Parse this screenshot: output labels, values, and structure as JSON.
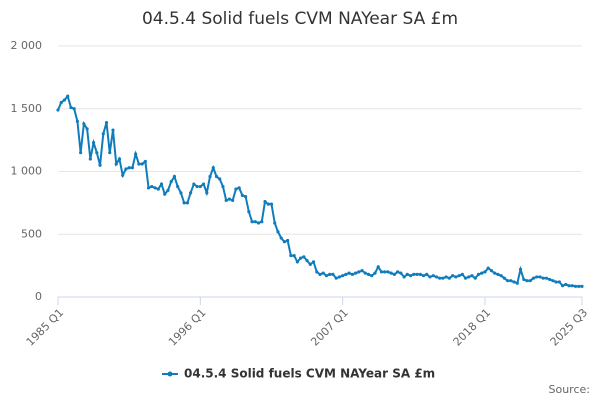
{
  "chart_data": {
    "type": "line",
    "title": "04.5.4 Solid fuels CVM NAYear SA £m",
    "source": "Source:",
    "categories": [
      "1985 Q1",
      null,
      null,
      null,
      null,
      null,
      null,
      null,
      null,
      null,
      null,
      null,
      null,
      null,
      null,
      null,
      null,
      null,
      null,
      null,
      null,
      null,
      null,
      null,
      null,
      null,
      null,
      null,
      null,
      null,
      null,
      null,
      null,
      null,
      null,
      null,
      null,
      null,
      null,
      null,
      null,
      null,
      null,
      null,
      "1996 Q1",
      null,
      null,
      null,
      null,
      null,
      null,
      null,
      null,
      null,
      null,
      null,
      null,
      null,
      null,
      null,
      null,
      null,
      null,
      null,
      null,
      null,
      null,
      null,
      null,
      null,
      null,
      null,
      null,
      null,
      null,
      null,
      null,
      null,
      null,
      null,
      null,
      null,
      null,
      null,
      null,
      null,
      null,
      null,
      "2007 Q1",
      null,
      null,
      null,
      null,
      null,
      null,
      null,
      null,
      null,
      null,
      null,
      null,
      null,
      null,
      null,
      null,
      null,
      null,
      null,
      null,
      null,
      null,
      null,
      null,
      null,
      null,
      null,
      null,
      null,
      null,
      null,
      null,
      null,
      null,
      null,
      null,
      null,
      null,
      null,
      null,
      null,
      null,
      null,
      "2018 Q1",
      null,
      null,
      null,
      null,
      null,
      null,
      null,
      null,
      null,
      null,
      null,
      null,
      null,
      null,
      null,
      null,
      null,
      null,
      null,
      null,
      null,
      null,
      null,
      null,
      null,
      null,
      null,
      null,
      null,
      "2025 Q3"
    ],
    "series": [
      {
        "name": "04.5.4 Solid fuels CVM NAYear SA £m",
        "color": "#0f7dbd",
        "values": [
          1490,
          1550,
          1570,
          1600,
          1510,
          1500,
          1400,
          1150,
          1380,
          1340,
          1100,
          1230,
          1150,
          1050,
          1300,
          1390,
          1150,
          1330,
          1060,
          1100,
          970,
          1020,
          1030,
          1030,
          1140,
          1060,
          1060,
          1080,
          870,
          880,
          870,
          860,
          900,
          820,
          850,
          920,
          960,
          880,
          830,
          750,
          750,
          830,
          900,
          880,
          880,
          900,
          830,
          960,
          1030,
          960,
          940,
          880,
          770,
          780,
          770,
          860,
          870,
          810,
          800,
          680,
          600,
          600,
          590,
          600,
          760,
          740,
          740,
          590,
          520,
          470,
          440,
          450,
          330,
          330,
          280,
          310,
          320,
          290,
          260,
          280,
          200,
          180,
          190,
          170,
          180,
          180,
          150,
          160,
          170,
          180,
          190,
          180,
          190,
          200,
          210,
          190,
          180,
          170,
          190,
          240,
          200,
          200,
          200,
          190,
          180,
          200,
          190,
          160,
          180,
          170,
          180,
          180,
          180,
          170,
          180,
          160,
          170,
          160,
          150,
          150,
          160,
          150,
          170,
          160,
          170,
          180,
          150,
          160,
          170,
          150,
          180,
          190,
          200,
          230,
          210,
          190,
          180,
          170,
          150,
          130,
          130,
          120,
          110,
          220,
          140,
          130,
          130,
          150,
          160,
          160,
          150,
          150,
          140,
          130,
          120,
          120,
          90,
          100,
          90,
          90,
          85,
          85,
          85
        ]
      }
    ],
    "ylim": [
      0,
      2000
    ],
    "yticks": [
      0,
      500,
      {
        "value": 1000,
        "label": "1 000"
      },
      {
        "value": 1500,
        "label": "1 500"
      },
      {
        "value": 2000,
        "label": "2 000"
      }
    ],
    "grid": true
  }
}
